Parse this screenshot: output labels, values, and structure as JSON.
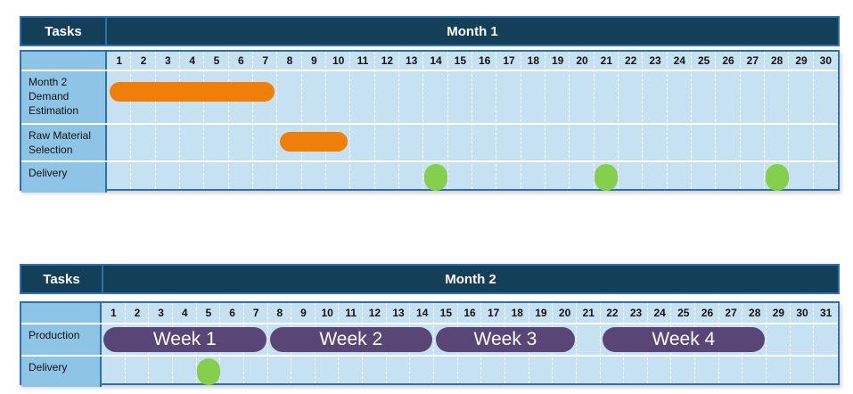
{
  "chart1": {
    "tasks_header": "Tasks",
    "month_label": "Month 1",
    "days": [
      "1",
      "2",
      "3",
      "4",
      "5",
      "6",
      "7",
      "8",
      "9",
      "10",
      "11",
      "12",
      "13",
      "14",
      "15",
      "16",
      "17",
      "18",
      "19",
      "20",
      "21",
      "22",
      "23",
      "24",
      "25",
      "26",
      "27",
      "28",
      "29",
      "30"
    ],
    "rows": [
      {
        "label": "Month 2\nDemand\nEstimation",
        "bars": [
          {
            "start": 1,
            "end": 7
          }
        ],
        "milestones": []
      },
      {
        "label": "Raw Material\nSelection",
        "bars": [
          {
            "start": 8,
            "end": 10
          }
        ],
        "milestones": []
      },
      {
        "label": "Delivery",
        "bars": [],
        "milestones": [
          14,
          21,
          28
        ]
      }
    ]
  },
  "chart2": {
    "tasks_header": "Tasks",
    "month_label": "Month 2",
    "days": [
      "1",
      "2",
      "3",
      "4",
      "5",
      "6",
      "7",
      "8",
      "9",
      "10",
      "11",
      "12",
      "13",
      "14",
      "15",
      "16",
      "17",
      "18",
      "19",
      "20",
      "21",
      "22",
      "23",
      "24",
      "25",
      "26",
      "27",
      "28",
      "29",
      "30",
      "31"
    ],
    "rows": [
      {
        "label": "Production",
        "bars": [
          {
            "start": 1,
            "end": 7,
            "label": "Week 1"
          },
          {
            "start": 8,
            "end": 14,
            "label": "Week 2"
          },
          {
            "start": 15,
            "end": 20,
            "label": "Week 3"
          },
          {
            "start": 22,
            "end": 28,
            "label": "Week 4"
          }
        ],
        "milestones": []
      },
      {
        "label": "Delivery",
        "bars": [],
        "milestones": [
          5
        ]
      }
    ]
  },
  "colors": {
    "header_bg": "#133f59",
    "border": "#2e6fb0",
    "grid_bg": "#c6e2f2",
    "task_col_bg": "#8ec5e6",
    "orange_bar": "#f07f0a",
    "green_milestone": "#86cf4c",
    "week_bar": "#5a4676"
  }
}
